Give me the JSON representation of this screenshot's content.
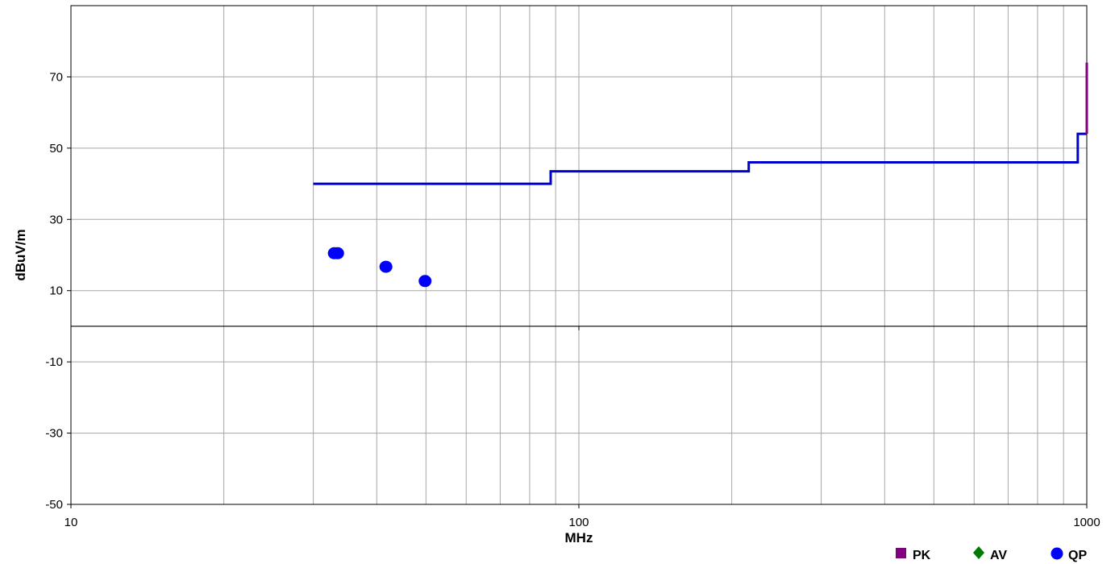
{
  "chart_data": {
    "type": "line",
    "title": "",
    "xlabel": "MHz",
    "ylabel": "dBuV/m",
    "x_scale": "log",
    "xlim": [
      10,
      1000
    ],
    "ylim": [
      -50,
      90
    ],
    "x_ticks": [
      {
        "value": 10,
        "label": "10"
      },
      {
        "value": 100,
        "label": "100"
      },
      {
        "value": 1000,
        "label": "1000"
      }
    ],
    "y_ticks": [
      {
        "value": -50,
        "label": "-50"
      },
      {
        "value": -30,
        "label": "-30"
      },
      {
        "value": -10,
        "label": "-10"
      },
      {
        "value": 10,
        "label": "10"
      },
      {
        "value": 30,
        "label": "30"
      },
      {
        "value": 50,
        "label": "50"
      },
      {
        "value": 70,
        "label": "70"
      }
    ],
    "zero_line": 0,
    "grid": true,
    "legend_position": "bottom-right",
    "limit_line": {
      "color": "#0000cc",
      "points": [
        [
          30,
          40
        ],
        [
          88,
          40
        ],
        [
          88,
          43.5
        ],
        [
          216,
          43.5
        ],
        [
          216,
          46
        ],
        [
          960,
          46
        ],
        [
          960,
          54
        ],
        [
          1000,
          54
        ]
      ]
    },
    "pk_line": {
      "color": "#800080",
      "points": [
        [
          1000,
          54
        ],
        [
          1000,
          74
        ]
      ]
    },
    "series": [
      {
        "name": "PK",
        "marker": "square",
        "color": "#800080",
        "points": []
      },
      {
        "name": "AV",
        "marker": "diamond",
        "color": "#007a00",
        "points": []
      },
      {
        "name": "QP",
        "marker": "circle",
        "color": "#0000ff",
        "points": [
          [
            33,
            20.5
          ],
          [
            33.5,
            20.5
          ],
          [
            41.7,
            16.7
          ],
          [
            49.8,
            12.7
          ]
        ]
      }
    ]
  }
}
